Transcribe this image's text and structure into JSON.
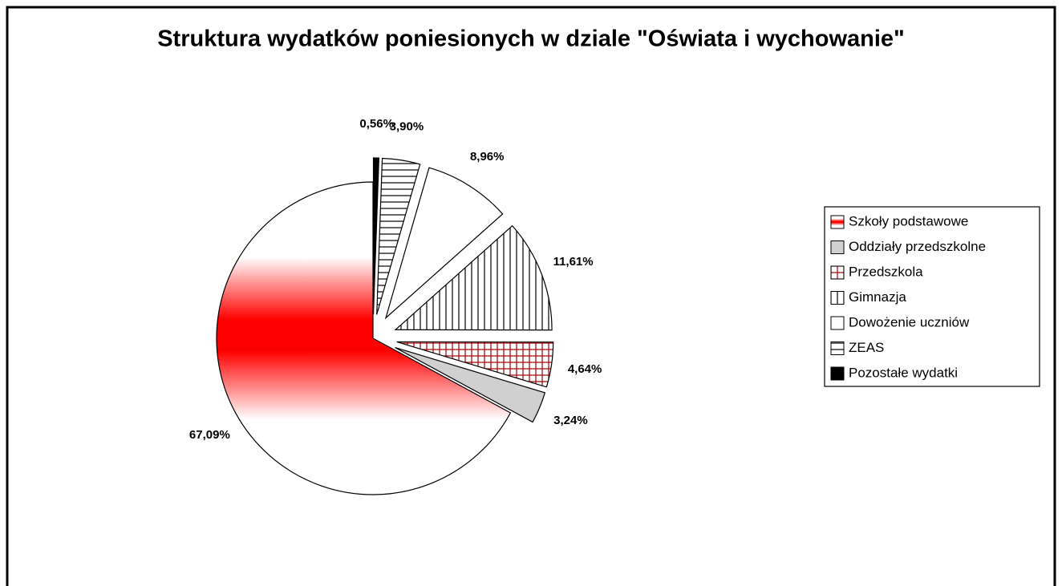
{
  "chart_data": {
    "type": "pie",
    "title": "Struktura wydatków poniesionych w dziale \"Oświata i wychowanie\"",
    "categories": [
      "Szkoły podstawowe",
      "Oddziały przedszkolne",
      "Przedszkola",
      "Gimnazja",
      "Dowożenie uczniów",
      "ZEAS",
      "Pozostałe wydatki"
    ],
    "values": [
      67.09,
      3.24,
      4.64,
      11.61,
      8.96,
      3.9,
      0.56
    ],
    "value_labels": [
      "67,09%",
      "3,24%",
      "4,64%",
      "11,61%",
      "8,96%",
      "3,90%",
      "0,56%"
    ],
    "colors": [
      "#ff0000",
      "#d0d0d0",
      "#a00000",
      "#000000",
      "#ffffff",
      "#000000",
      "#000000"
    ],
    "patterns": [
      "gradient",
      "solid",
      "grid",
      "vertical",
      "solid",
      "horizontal",
      "solid"
    ],
    "legend": "right"
  }
}
